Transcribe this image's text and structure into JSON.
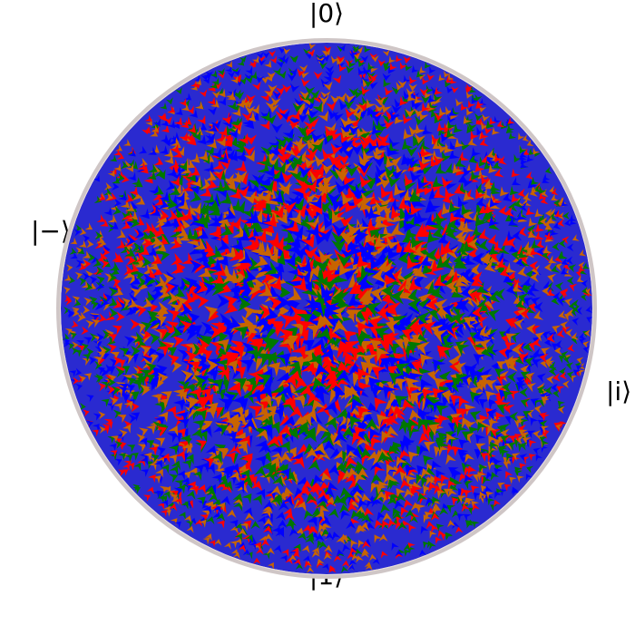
{
  "labels": {
    "top": "|0⟩",
    "bottom": "|1⟩",
    "left": "|−⟩",
    "right": "|i⟩"
  }
}
